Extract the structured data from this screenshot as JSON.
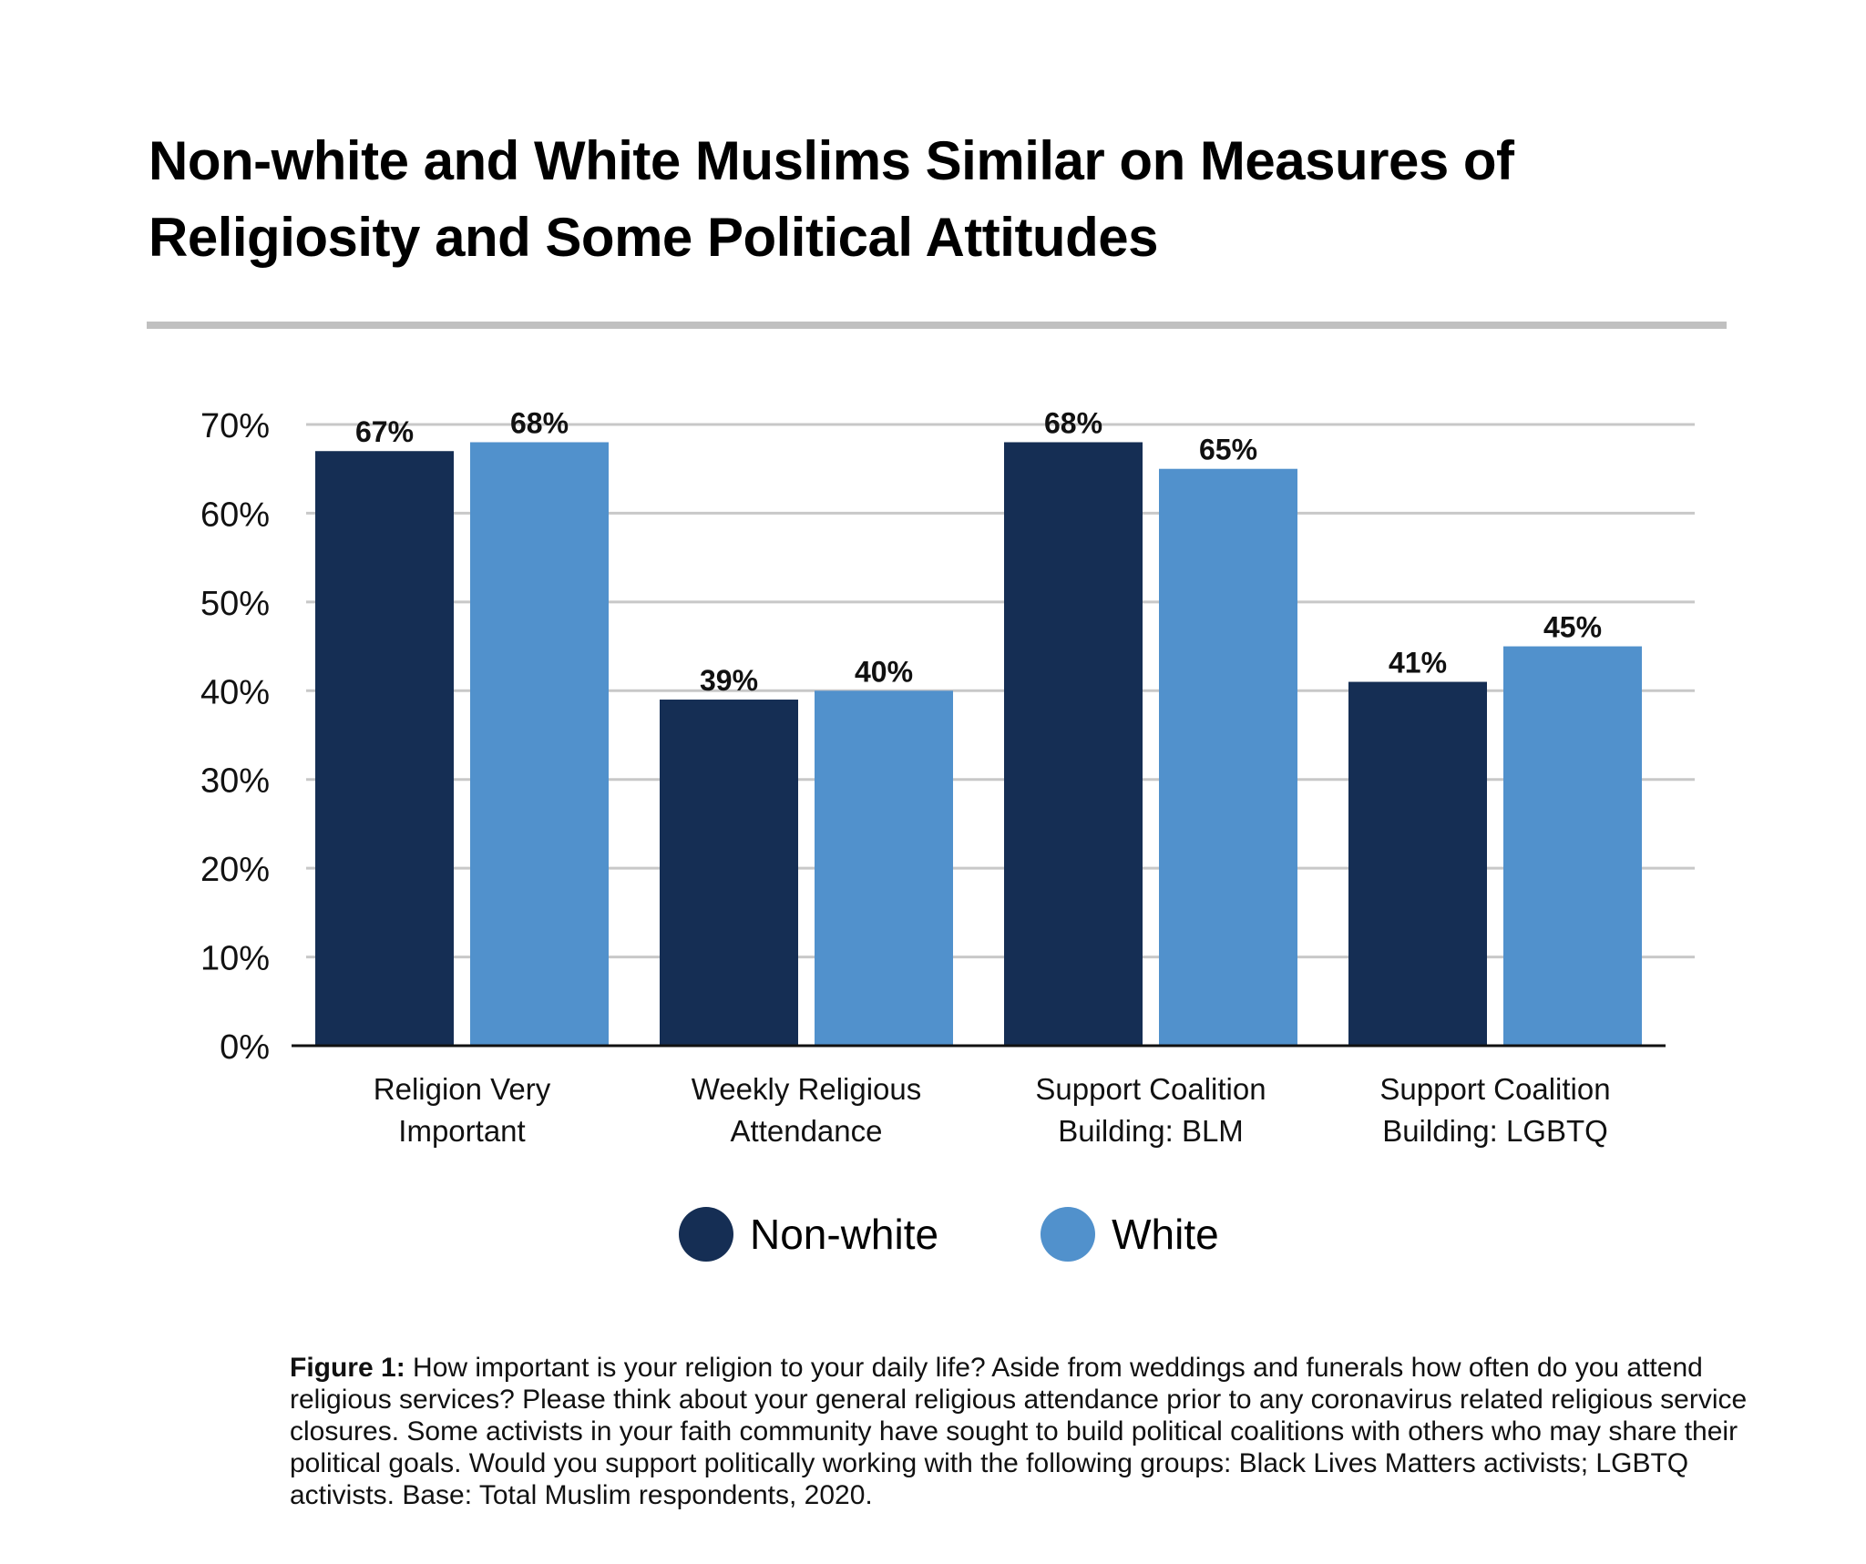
{
  "chart_data": {
    "type": "bar",
    "title": "Non-white and White Muslims Similar on Measures of Religiosity and Some Political Attitudes",
    "xlabel": "",
    "ylabel": "",
    "ylim": [
      0,
      70
    ],
    "yticks": [
      0,
      10,
      20,
      30,
      40,
      50,
      60,
      70
    ],
    "ytick_labels": [
      "0%",
      "10%",
      "20%",
      "30%",
      "40%",
      "50%",
      "60%",
      "70%"
    ],
    "grid": true,
    "legend_position": "bottom-center",
    "categories": [
      [
        "Religion Very",
        "Important"
      ],
      [
        "Weekly Religious",
        "Attendance"
      ],
      [
        "Support Coalition",
        "Building: BLM"
      ],
      [
        "Support Coalition",
        "Building: LGBTQ"
      ]
    ],
    "series": [
      {
        "name": "Non-white",
        "color": "#152e54",
        "values": [
          67,
          39,
          68,
          41
        ],
        "labels": [
          "67%",
          "39%",
          "68%",
          "41%"
        ]
      },
      {
        "name": "White",
        "color": "#5191cc",
        "values": [
          68,
          40,
          65,
          45
        ],
        "labels": [
          "68%",
          "40%",
          "65%",
          "45%"
        ]
      }
    ]
  },
  "header": {
    "title_line1": "Non-white and White Muslims Similar on Measures of",
    "title_line2": "Religiosity and Some Political Attitudes"
  },
  "legend": {
    "items": [
      {
        "label": "Non-white",
        "color": "#152e54"
      },
      {
        "label": "White",
        "color": "#5191cc"
      }
    ]
  },
  "caption": {
    "label": "Figure 1:",
    "text": " How important is your religion to your daily life? Aside from weddings and funerals how often do you attend religious services? Please think about your general religious attendance prior to any coronavirus related religious service closures. Some activists in your faith community have sought to build political coalitions with others who may share their political goals. Would you support politically working with the following groups: Black Lives Matters activists; LGBTQ activists. Base: Total Muslim respondents, 2020."
  },
  "colors": {
    "gridline": "#c8c8c8",
    "axis": "#111111",
    "title_rule": "#c0c0c0"
  }
}
